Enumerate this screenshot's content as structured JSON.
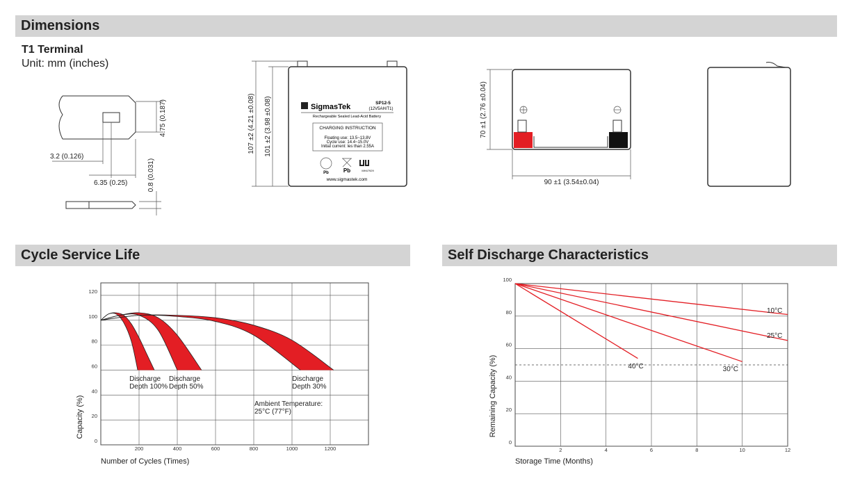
{
  "dimensions": {
    "title": "Dimensions",
    "terminal": "T1 Terminal",
    "unit": "Unit: mm (inches)",
    "terminal_labels": [
      "4.75 (0.187)",
      "3.2 (0.126)",
      "6.35 (0.25)",
      "0.8 (0.031)"
    ],
    "height_total": "107 ±2 (4.21 ±0.08)",
    "height_case": "101 ±2 (3.98 ±0.08)",
    "depth": "70 ±1 (2.76 ±0.04)",
    "width": "90 ±1 (3.54±0.04)",
    "label": {
      "brand": "SigmasTek",
      "model": "SP12-5",
      "spec": "(12V5AH/T1)",
      "subtitle": "Rechargeable Sealed Lead-Acid Battery",
      "instruction_title": "CHARGING INSTRUCTION",
      "instructions": [
        "Floating use: 13.5~13.8V",
        "Cycle use: 14.4~15.0V",
        "Initial current: les than 2.55A"
      ],
      "marks": [
        "Pb",
        "Pb",
        "MH47929"
      ],
      "website": "www.sigmastek.com"
    }
  },
  "chart_data": [
    {
      "type": "band",
      "title": "Cycle Service Life",
      "x_label": "Number of Cycles (Times)",
      "y_label": "Capacity (%)",
      "xlim": [
        0,
        1400
      ],
      "xticks": [
        200,
        400,
        600,
        800,
        1000,
        1200
      ],
      "ylim": [
        0,
        130
      ],
      "yticks": [
        0,
        20,
        40,
        60,
        80,
        100,
        120
      ],
      "grid": true,
      "series": [
        {
          "name": "Discharge Depth 100%",
          "color": "#e31e24",
          "x": [
            0,
            40,
            80,
            120,
            160,
            200,
            240,
            280
          ],
          "values": [
            100,
            105,
            106,
            104,
            97,
            86,
            73,
            60
          ],
          "x2": [
            0,
            40,
            80,
            120,
            160,
            193
          ],
          "values2": [
            100,
            105,
            105,
            98,
            83,
            60
          ]
        },
        {
          "name": "Discharge Depth 50%",
          "color": "#e31e24",
          "x": [
            0,
            100,
            200,
            300,
            400,
            527
          ],
          "values": [
            100,
            104,
            106,
            102,
            88,
            60
          ],
          "x2": [
            0,
            100,
            200,
            300,
            400
          ],
          "values2": [
            100,
            104,
            104,
            92,
            60
          ]
        },
        {
          "name": "Discharge Depth 30%",
          "color": "#e31e24",
          "x": [
            0,
            200,
            400,
            600,
            800,
            1000,
            1218
          ],
          "values": [
            100,
            104,
            104,
            102,
            96,
            84,
            60
          ],
          "x2": [
            0,
            200,
            400,
            600,
            800,
            1044
          ],
          "values2": [
            100,
            104,
            103,
            99,
            88,
            60
          ]
        }
      ],
      "annotations": [
        "Ambient Temperature:",
        "25°C (77°F)"
      ]
    },
    {
      "type": "line",
      "title": "Self Discharge Characteristics",
      "x_label": "Storage Time (Months)",
      "y_label": "Remaining Capacity (%)",
      "xlim": [
        0,
        12
      ],
      "xticks": [
        2,
        4,
        6,
        8,
        10,
        12
      ],
      "ylim": [
        0,
        100
      ],
      "yticks": [
        0,
        20,
        40,
        60,
        80,
        100
      ],
      "grid": true,
      "threshold": 50,
      "series": [
        {
          "name": "10°C",
          "color": "#e31e24",
          "x": [
            0,
            12
          ],
          "values": [
            100,
            81
          ]
        },
        {
          "name": "25°C",
          "color": "#e31e24",
          "x": [
            0,
            12
          ],
          "values": [
            100,
            65
          ]
        },
        {
          "name": "30°C",
          "color": "#e31e24",
          "x": [
            0,
            10
          ],
          "values": [
            100,
            52
          ]
        },
        {
          "name": "40°C",
          "color": "#e31e24",
          "x": [
            0,
            5.4
          ],
          "values": [
            100,
            54
          ]
        }
      ]
    }
  ]
}
